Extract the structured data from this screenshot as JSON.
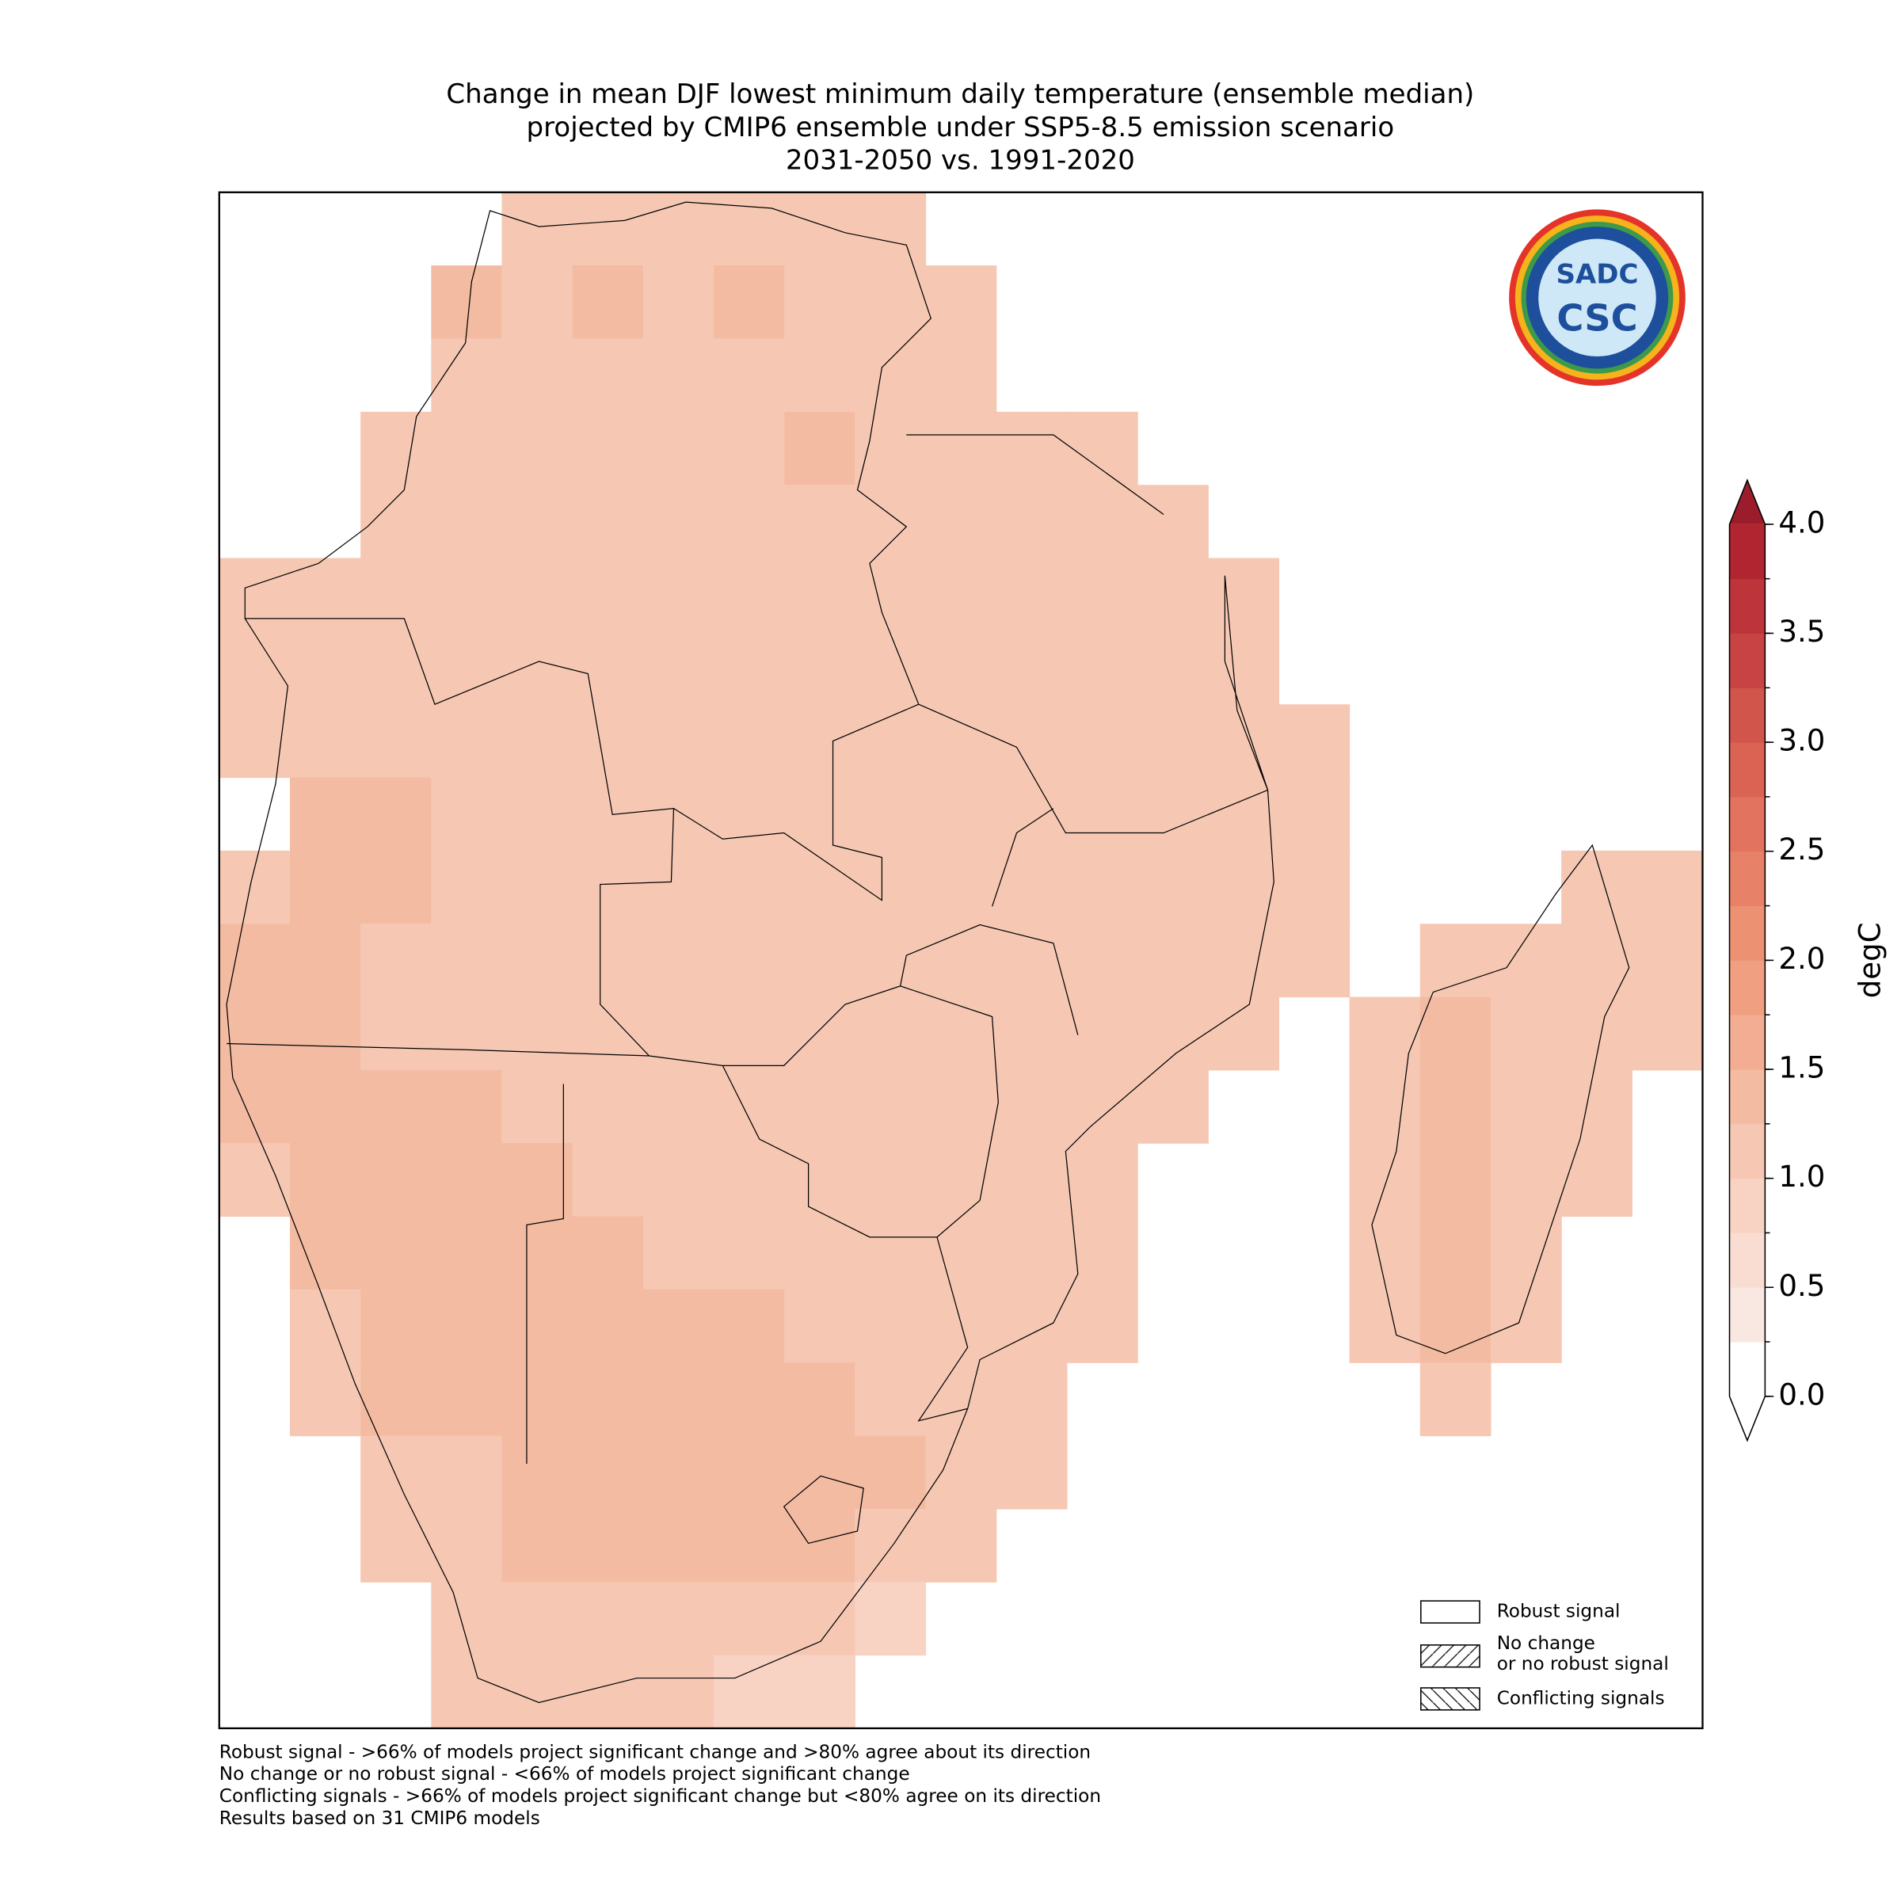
{
  "chart_data": {
    "type": "map",
    "title": [
      "Change in mean DJF lowest minimum daily temperature (ensemble median)",
      "projected by CMIP6 ensemble under SSP5-8.5 emission scenario",
      "2031-2050 vs. 1991-2020"
    ],
    "cells": [
      [
        null,
        null,
        null,
        null,
        1.2,
        1.2,
        1.2,
        1.2,
        1.2,
        1.2,
        null,
        null,
        null,
        null,
        null,
        null,
        null,
        null,
        null,
        null,
        null
      ],
      [
        null,
        null,
        null,
        1.4,
        1.2,
        1.3,
        1.2,
        1.3,
        1.2,
        1.2,
        1.2,
        null,
        null,
        null,
        null,
        null,
        null,
        null,
        null,
        null,
        null
      ],
      [
        null,
        null,
        null,
        1.2,
        1.2,
        1.0,
        1.2,
        1.0,
        1.0,
        1.0,
        1.2,
        null,
        null,
        null,
        null,
        null,
        null,
        null,
        null,
        null,
        null
      ],
      [
        null,
        null,
        1.2,
        1.2,
        1.2,
        1.2,
        1.2,
        1.2,
        1.3,
        1.2,
        1.2,
        1.2,
        1.2,
        null,
        null,
        null,
        null,
        null,
        null,
        null,
        null
      ],
      [
        null,
        null,
        1.2,
        1.0,
        1.0,
        1.2,
        1.2,
        1.2,
        1.2,
        1.2,
        1.2,
        1.2,
        1.2,
        1.2,
        null,
        null,
        null,
        null,
        null,
        null,
        null
      ],
      [
        1.0,
        1.0,
        1.0,
        1.0,
        1.0,
        1.0,
        1.2,
        1.2,
        1.2,
        1.2,
        1.2,
        1.2,
        1.2,
        1.2,
        1.0,
        null,
        null,
        null,
        null,
        null,
        null
      ],
      [
        1.2,
        1.2,
        1.2,
        1.2,
        1.0,
        1.0,
        1.0,
        1.2,
        1.2,
        1.2,
        1.2,
        1.2,
        1.2,
        1.2,
        1.0,
        null,
        null,
        null,
        null,
        null,
        null
      ],
      [
        1.2,
        1.2,
        1.2,
        1.2,
        1.2,
        1.2,
        1.2,
        1.2,
        1.2,
        1.2,
        1.2,
        1.2,
        1.2,
        1.2,
        1.0,
        1.0,
        null,
        null,
        null,
        null,
        null
      ],
      [
        null,
        1.3,
        1.3,
        1.2,
        1.2,
        1.2,
        1.2,
        1.2,
        1.2,
        1.2,
        1.2,
        1.2,
        1.2,
        1.2,
        1.0,
        1.0,
        null,
        null,
        null,
        null,
        null
      ],
      [
        1.2,
        1.3,
        1.3,
        1.2,
        1.2,
        1.2,
        1.2,
        1.2,
        1.2,
        1.2,
        1.2,
        1.2,
        1.2,
        1.1,
        1.0,
        1.0,
        null,
        null,
        null,
        1.0,
        1.0
      ],
      [
        1.3,
        1.3,
        1.2,
        1.2,
        1.2,
        1.2,
        1.2,
        1.2,
        1.2,
        1.2,
        1.2,
        1.2,
        1.2,
        1.1,
        1.0,
        1.0,
        null,
        1.1,
        1.2,
        1.1,
        1.0
      ],
      [
        1.3,
        1.3,
        1.2,
        1.2,
        1.2,
        1.2,
        1.2,
        1.2,
        1.2,
        1.2,
        1.2,
        1.2,
        1.2,
        1.0,
        1.0,
        null,
        1.2,
        1.3,
        1.2,
        1.1,
        1.0
      ],
      [
        1.3,
        1.3,
        1.4,
        1.4,
        1.2,
        1.2,
        1.2,
        1.2,
        1.2,
        1.2,
        1.2,
        1.2,
        1.2,
        1.0,
        null,
        null,
        1.2,
        1.3,
        1.2,
        1.1,
        null
      ],
      [
        1.2,
        1.3,
        1.4,
        1.4,
        1.3,
        1.2,
        1.2,
        1.2,
        1.2,
        1.2,
        1.2,
        1.2,
        1.0,
        null,
        null,
        null,
        1.2,
        1.3,
        1.2,
        1.1,
        null
      ],
      [
        null,
        1.3,
        1.4,
        1.4,
        1.4,
        1.3,
        1.2,
        1.2,
        1.2,
        1.2,
        1.2,
        1.1,
        1.0,
        null,
        null,
        null,
        1.2,
        1.3,
        1.2,
        null,
        null
      ],
      [
        null,
        1.2,
        1.4,
        1.4,
        1.4,
        1.4,
        1.4,
        1.3,
        1.2,
        1.2,
        1.2,
        1.1,
        1.0,
        null,
        null,
        null,
        1.2,
        1.3,
        1.2,
        null,
        null
      ],
      [
        null,
        1.1,
        1.3,
        1.4,
        1.3,
        1.3,
        1.4,
        1.4,
        1.3,
        1.2,
        1.2,
        1.1,
        null,
        null,
        null,
        null,
        null,
        1.2,
        null,
        null,
        null
      ],
      [
        null,
        null,
        1.2,
        1.2,
        1.3,
        1.4,
        1.4,
        1.4,
        1.4,
        1.3,
        1.2,
        1.1,
        null,
        null,
        null,
        null,
        null,
        null,
        null,
        null,
        null
      ],
      [
        null,
        null,
        1.1,
        1.2,
        1.3,
        1.4,
        1.3,
        1.4,
        1.3,
        1.2,
        1.1,
        null,
        null,
        null,
        null,
        null,
        null,
        null,
        null,
        null,
        null
      ],
      [
        null,
        null,
        null,
        1.1,
        1.1,
        1.1,
        1.2,
        1.0,
        1.0,
        0.9,
        null,
        null,
        null,
        null,
        null,
        null,
        null,
        null,
        null,
        null,
        null
      ],
      [
        null,
        null,
        null,
        1.0,
        1.0,
        1.0,
        1.0,
        0.9,
        0.9,
        null,
        null,
        null,
        null,
        null,
        null,
        null,
        null,
        null,
        null,
        null,
        null
      ]
    ],
    "colorbar": {
      "label": "degC",
      "levels": [
        0,
        0.25,
        0.5,
        0.75,
        1,
        1.25,
        1.5,
        1.75,
        2,
        2.25,
        2.5,
        2.75,
        3,
        3.25,
        3.5,
        3.75,
        4
      ],
      "colors": [
        "#ffffff",
        "#f9e7e2",
        "#f9ddd3",
        "#f8d3c4",
        "#f6c8b4",
        "#f4bba3",
        "#f2ad92",
        "#f0a080",
        "#ec9273",
        "#e78268",
        "#e2735e",
        "#da6353",
        "#d2554b",
        "#c84343",
        "#bd353a",
        "#b02530"
      ],
      "under_color": "#ffffff",
      "over_color": "#9b1c2b",
      "ticks": [
        {
          "value": 0,
          "label": "0.0"
        },
        {
          "value": 0.5,
          "label": "0.5"
        },
        {
          "value": 1,
          "label": "1.0"
        },
        {
          "value": 1.5,
          "label": "1.5"
        },
        {
          "value": 2,
          "label": "2.0"
        },
        {
          "value": 2.5,
          "label": "2.5"
        },
        {
          "value": 3,
          "label": "3.0"
        },
        {
          "value": 3.5,
          "label": "3.5"
        },
        {
          "value": 4,
          "label": "4.0"
        }
      ]
    },
    "legend": [
      [
        "Robust signal"
      ],
      [
        "No change",
        "or no robust signal"
      ],
      [
        "Conflicting signals"
      ]
    ],
    "logo": [
      "SADC",
      "CSC"
    ],
    "footnotes": [
      "Robust signal - >66% of models project significant change and >80% agree about its direction",
      "No change or no robust signal - <66% of models project significant change",
      "Conflicting signals - >66% of models project significant change but <80% agree on its direction",
      "Results based on 31 CMIP6 models"
    ]
  }
}
